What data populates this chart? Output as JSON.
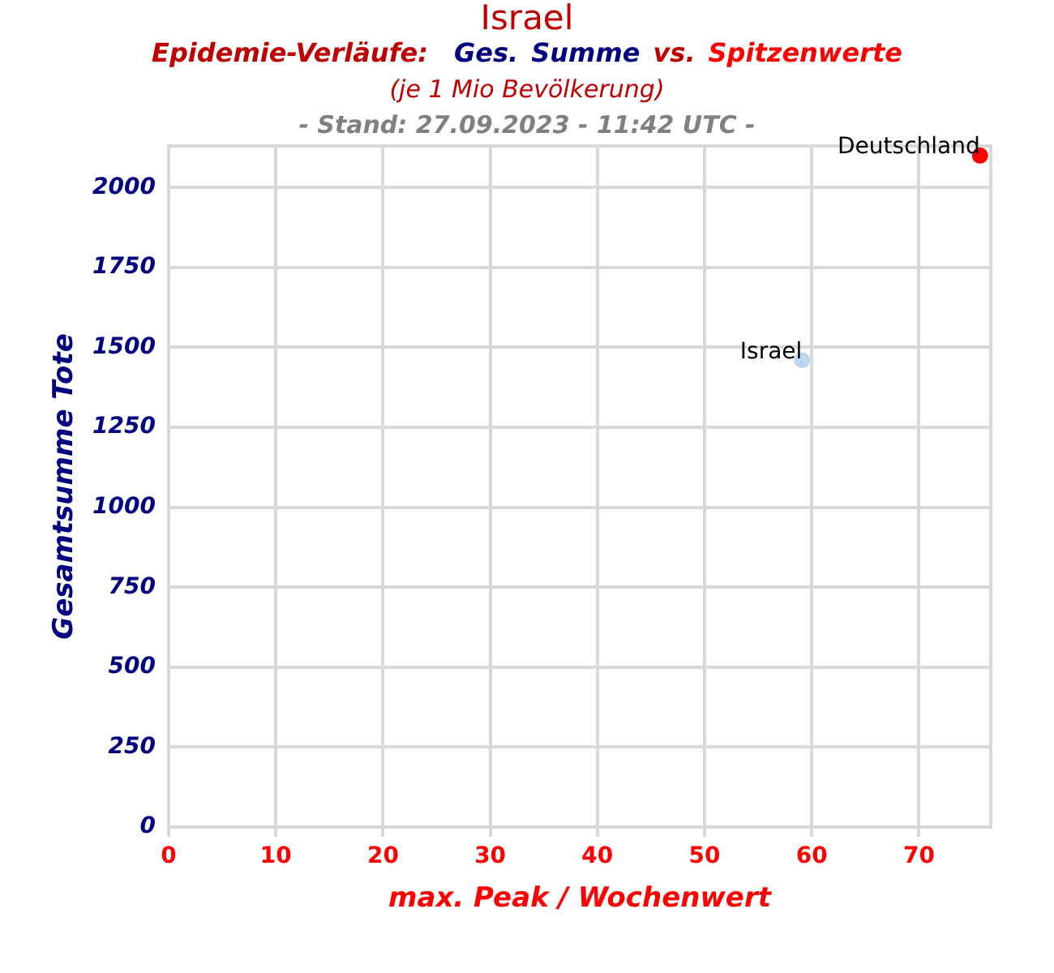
{
  "chart_data": {
    "type": "scatter",
    "title": "Israel",
    "subtitle": "Epidemie-Verläufe: Ges. Summe vs. Spitzenwerte",
    "annotations": [
      "(je 1 Mio Bevölkerung)",
      "- Stand: 27.09.2023 - 11:42 UTC -"
    ],
    "xlabel": "max. Peak / Wochenwert",
    "ylabel": "Gesamtsumme Tote",
    "series": [
      {
        "name": "Deutschland",
        "color": "#ff0000",
        "x": [
          75.7
        ],
        "values": [
          2100
        ]
      },
      {
        "name": "Israel",
        "color": "#bdd7ee",
        "x": [
          59.1
        ],
        "values": [
          1460
        ]
      }
    ],
    "xlim": [
      0,
      76.7
    ],
    "ylim": [
      0,
      2130
    ],
    "xticks": [
      0,
      10,
      20,
      30,
      40,
      50,
      60,
      70
    ],
    "yticks": [
      0,
      250,
      500,
      750,
      1000,
      1250,
      1500,
      1750,
      2000
    ],
    "grid": true,
    "legend": false,
    "marker": "circle"
  }
}
